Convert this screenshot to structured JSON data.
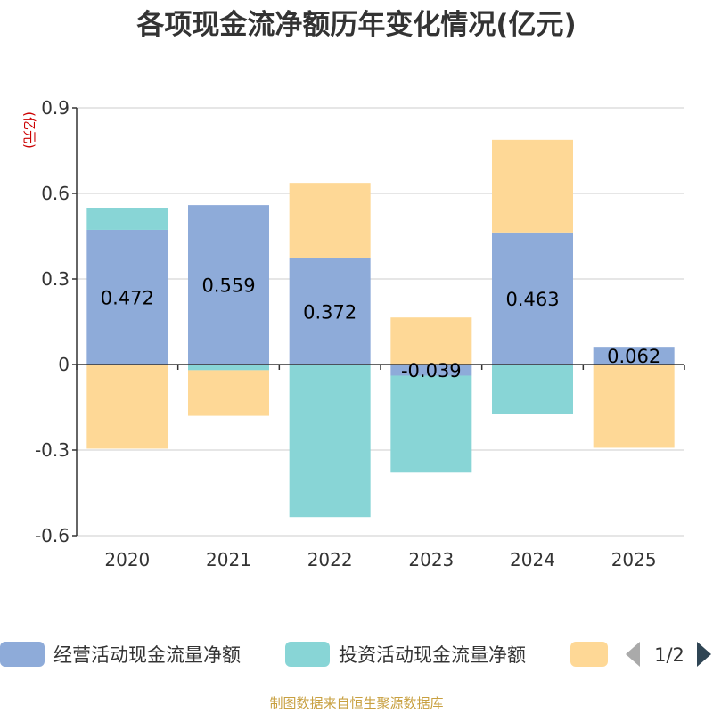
{
  "chart_data": {
    "type": "bar",
    "stacked": true,
    "title": "各项现金流净额历年变化情况(亿元)",
    "ylabel": "(亿元)",
    "xlabel": "",
    "ylim": [
      -0.6,
      0.9
    ],
    "yticks": [
      -0.6,
      -0.3,
      0,
      0.3,
      0.6,
      0.9
    ],
    "ytick_labels": [
      "-0.6",
      "-0.3",
      "0",
      "0.3",
      "0.6",
      "0.9"
    ],
    "grid": true,
    "categories": [
      "2020",
      "2021",
      "2022",
      "2023",
      "2024",
      "2025"
    ],
    "series": [
      {
        "name": "经营活动现金流量净额",
        "color": "#8eabd9",
        "values": [
          0.472,
          0.559,
          0.372,
          -0.039,
          0.463,
          0.062
        ],
        "labels": [
          "0.472",
          "0.559",
          "0.372",
          "-0.039",
          "0.463",
          "0.062"
        ]
      },
      {
        "name": "投资活动现金流量净额",
        "color": "#88d5d6",
        "values": [
          0.078,
          -0.02,
          -0.535,
          -0.34,
          -0.175,
          0.0
        ],
        "labels": null
      },
      {
        "name": "",
        "color": "#fed896",
        "values": [
          -0.295,
          -0.16,
          0.265,
          0.165,
          0.325,
          -0.292
        ],
        "labels": null
      }
    ],
    "legend": {
      "position": "bottom",
      "page": "1/2"
    }
  },
  "source_note": "制图数据来自恒生聚源数据库"
}
